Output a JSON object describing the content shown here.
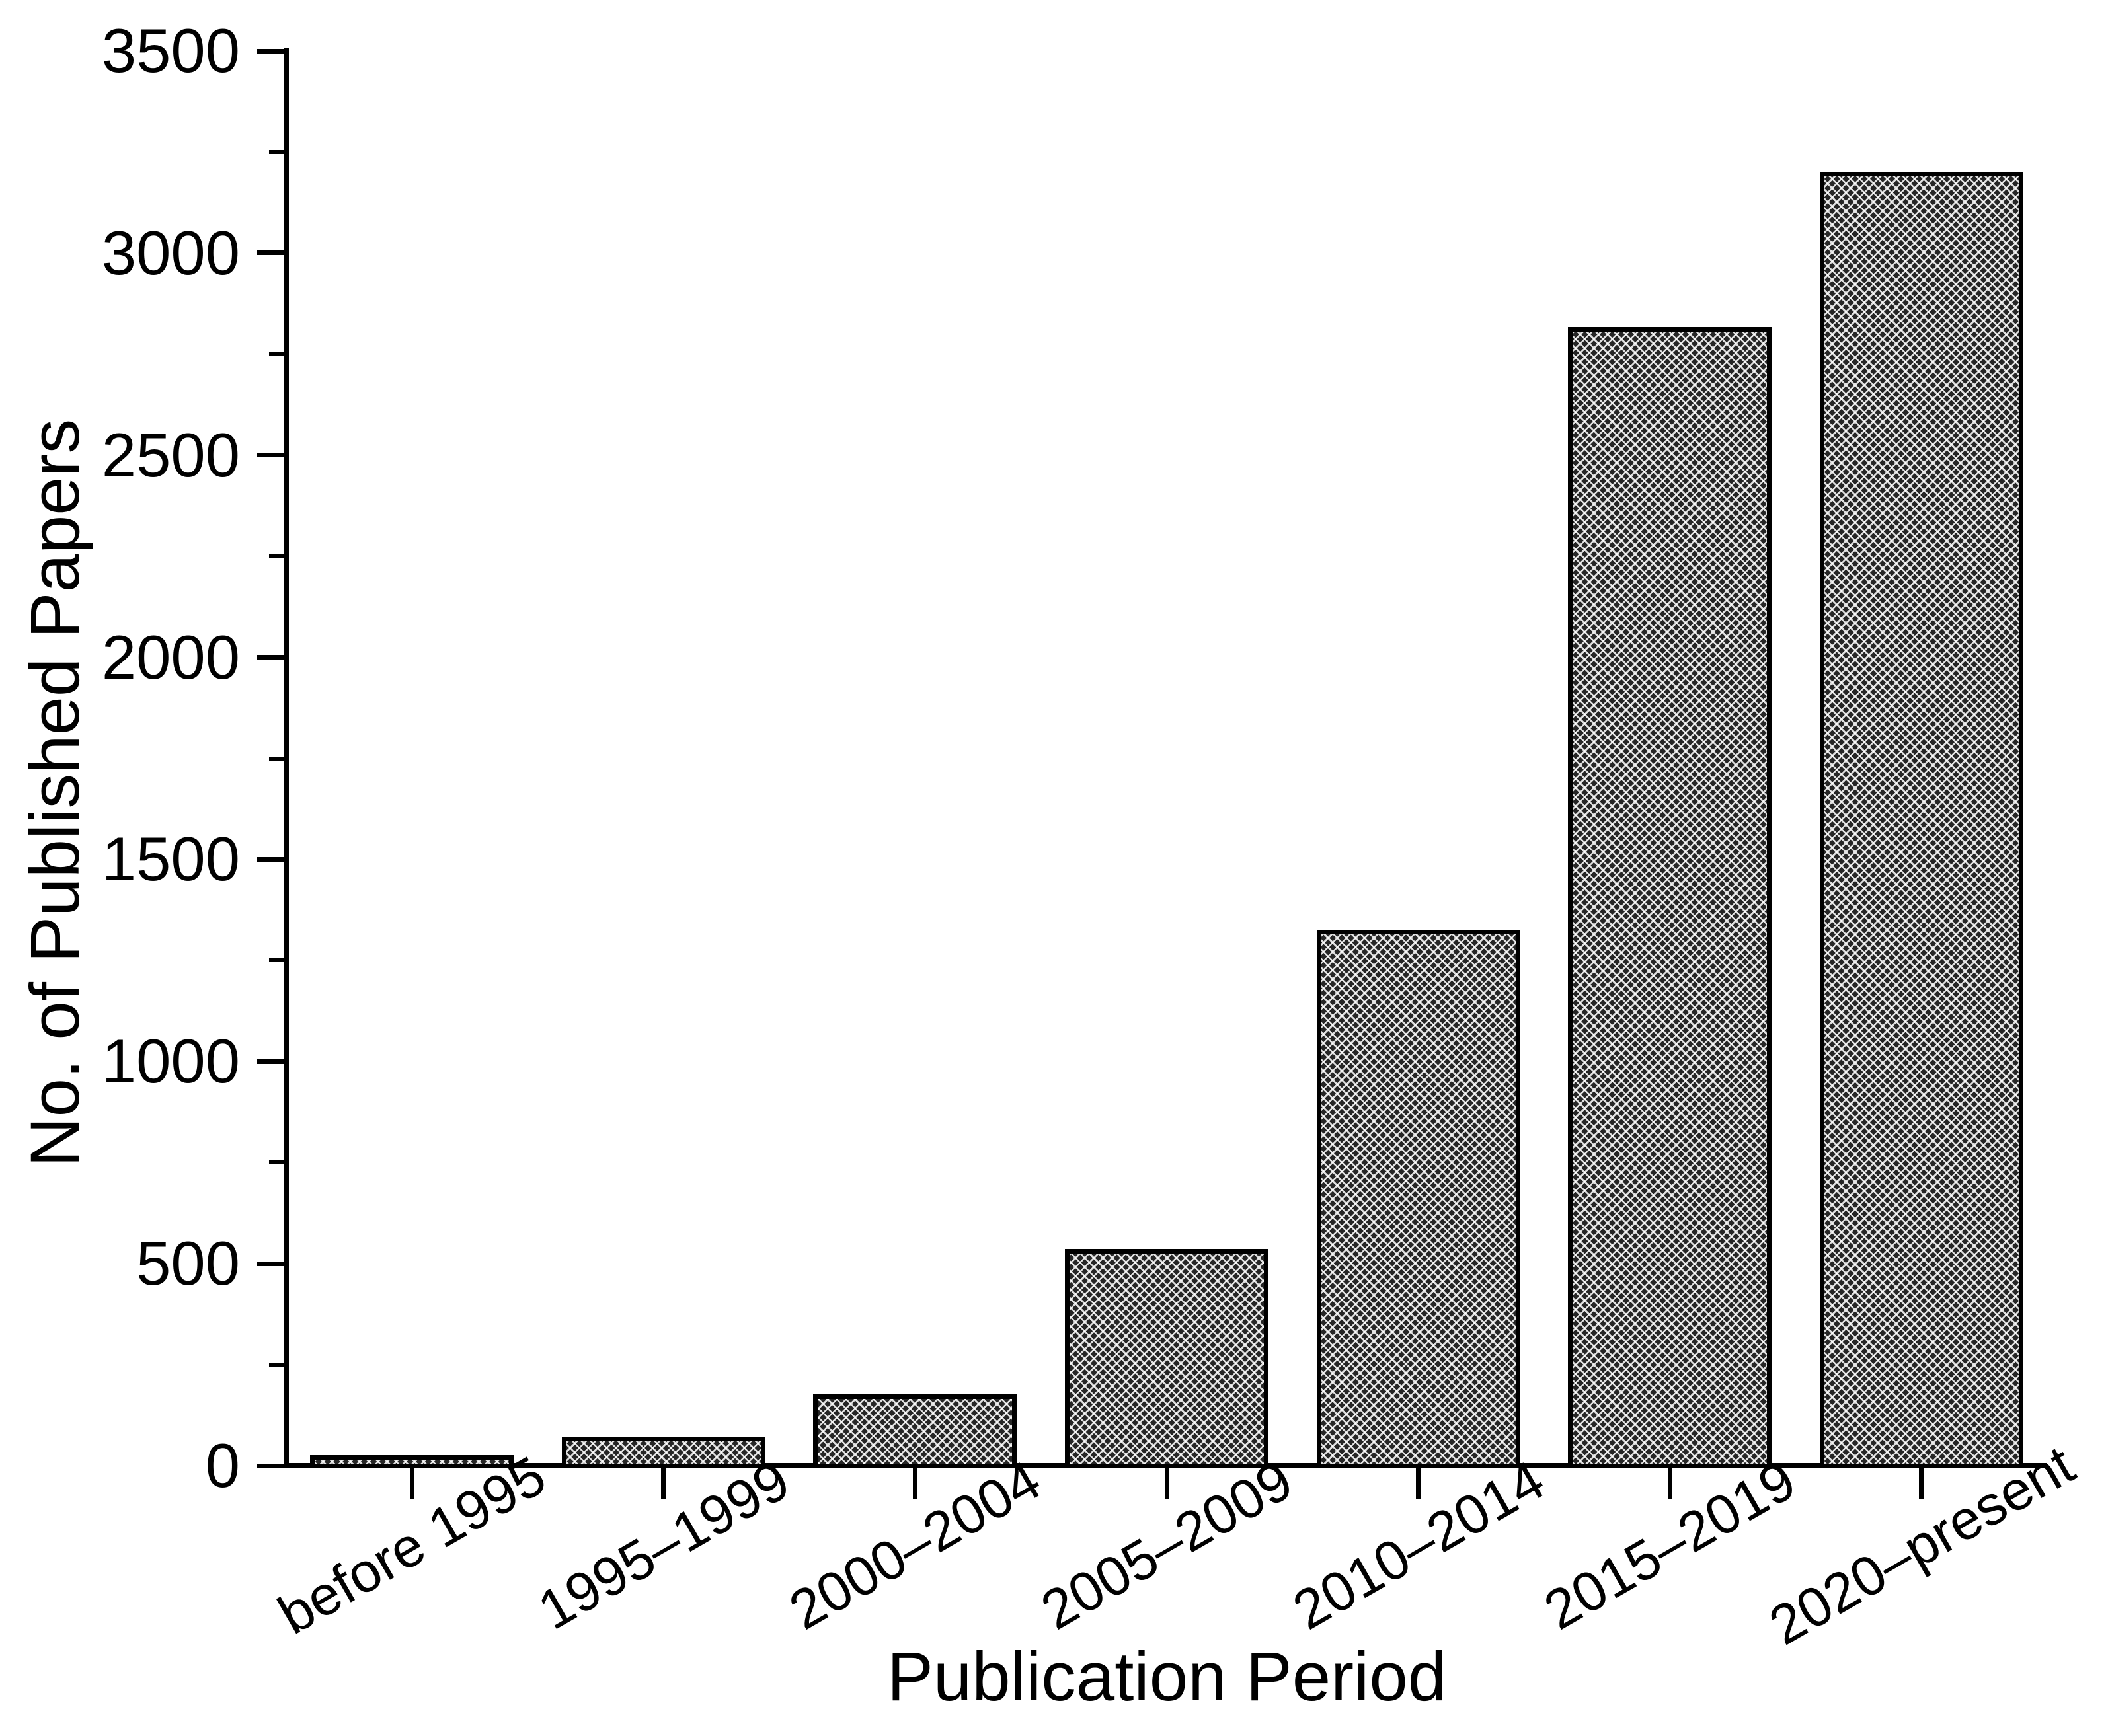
{
  "figure": {
    "background_color": "#ffffff",
    "text_color": "#000000",
    "axis_color": "#000000"
  },
  "chart_data": {
    "type": "bar",
    "title": "",
    "xlabel": "Publication Period",
    "ylabel": "No. of Published Papers",
    "categories": [
      "before 1995",
      "1995–1999",
      "2000–2004",
      "2005–2009",
      "2010–2014",
      "2015–2019",
      "2020–present"
    ],
    "values": [
      10,
      55,
      160,
      520,
      1310,
      2800,
      3185
    ],
    "ylim": [
      0,
      3500
    ],
    "ytick_step": 500,
    "ytick_minor_step": 250,
    "ytick_labels": [
      "0",
      "500",
      "1000",
      "1500",
      "2000",
      "2500",
      "3000",
      "3500"
    ],
    "grid": false,
    "legend_position": "none",
    "bar_style": {
      "fill_pattern": "dense-crosshatch",
      "pattern_line_color": "#ffffff",
      "pattern_background": "#262626",
      "border_color": "#000000"
    }
  }
}
